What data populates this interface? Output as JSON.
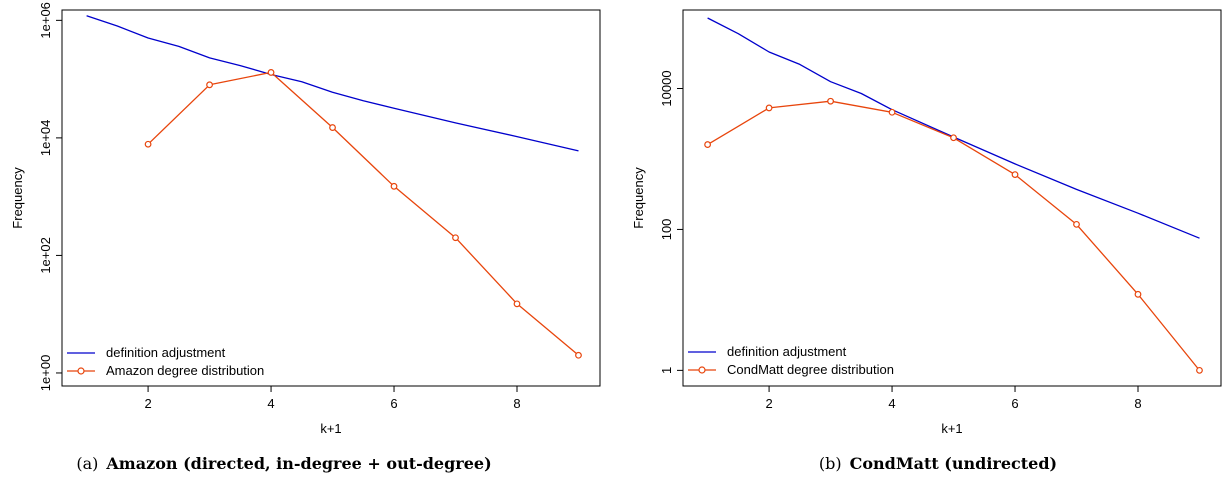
{
  "chart_data": [
    {
      "type": "line",
      "panel_tag": "(a)",
      "caption": "Amazon (directed, in-degree + out-degree)",
      "xlabel": "k+1",
      "ylabel": "Frequency",
      "xlim": [
        0.6,
        9.35
      ],
      "ylim": [
        0.6,
        1500000
      ],
      "yscale": "log",
      "x_ticks": [
        2,
        4,
        6,
        8
      ],
      "y_ticks": [
        {
          "value": 1,
          "label": "1e+00"
        },
        {
          "value": 100,
          "label": "1e+02"
        },
        {
          "value": 10000,
          "label": "1e+04"
        },
        {
          "value": 1000000,
          "label": "1e+06"
        }
      ],
      "legend_position": "bottom-left",
      "series": [
        {
          "name": "definition adjustment",
          "color": "#0000cc",
          "marker": "none",
          "x": [
            1,
            1.5,
            2,
            2.5,
            3,
            3.5,
            4,
            4.5,
            5,
            5.5,
            6,
            7,
            8,
            9
          ],
          "y": [
            1200000,
            800000,
            500000,
            360000,
            230000,
            170000,
            120000,
            90000,
            60000,
            43000,
            32000,
            18000,
            10500,
            6000
          ]
        },
        {
          "name": "Amazon degree distribution",
          "color": "#e8450c",
          "marker": "circle",
          "x": [
            2,
            3,
            4,
            5,
            6,
            7,
            8,
            9
          ],
          "y": [
            7800,
            80000,
            130000,
            15000,
            1500,
            200,
            15,
            2
          ]
        }
      ]
    },
    {
      "type": "line",
      "panel_tag": "(b)",
      "caption": "CondMatt (undirected)",
      "xlabel": "k+1",
      "ylabel": "Frequency",
      "xlim": [
        0.6,
        9.35
      ],
      "ylim": [
        0.6,
        130000
      ],
      "yscale": "log",
      "x_ticks": [
        2,
        4,
        6,
        8
      ],
      "y_ticks": [
        {
          "value": 1,
          "label": "1"
        },
        {
          "value": 100,
          "label": "100"
        },
        {
          "value": 10000,
          "label": "10000"
        }
      ],
      "legend_position": "bottom-left",
      "series": [
        {
          "name": "definition adjustment",
          "color": "#0000cc",
          "marker": "none",
          "x": [
            1,
            1.5,
            2,
            2.5,
            3,
            3.5,
            4,
            5,
            6,
            7,
            8,
            9
          ],
          "y": [
            100000,
            60000,
            33000,
            22000,
            12500,
            8500,
            5000,
            2050,
            850,
            370,
            170,
            75
          ]
        },
        {
          "name": "CondMatt degree distribution",
          "color": "#e8450c",
          "marker": "circle",
          "x": [
            1,
            2,
            3,
            4,
            5,
            6,
            7,
            8,
            9
          ],
          "y": [
            1600,
            5300,
            6600,
            4600,
            2000,
            600,
            118,
            12,
            1
          ]
        }
      ]
    }
  ]
}
